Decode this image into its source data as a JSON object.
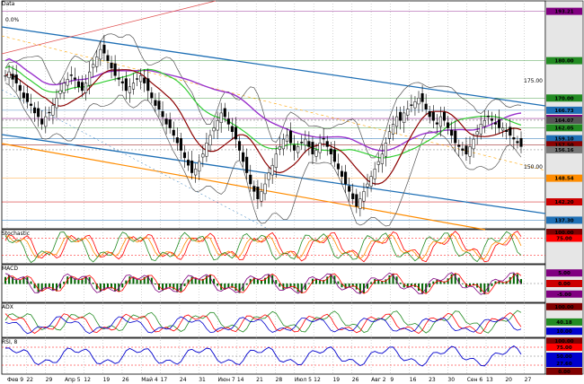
{
  "chart_data": {
    "type": "candlestick",
    "x_ticks": [
      "Фев 9",
      "22",
      "29",
      "Апр 5",
      "12",
      "19",
      "26",
      "Май 4",
      "17",
      "24",
      "31",
      "Июн 7",
      "14",
      "21",
      "28",
      "Июл 5",
      "12",
      "19",
      "26",
      "Авг 2",
      "9",
      "16",
      "23",
      "30",
      "Сен 6",
      "13",
      "20",
      "27"
    ],
    "panels": {
      "main": {
        "title": "Data",
        "annotation": "0.0%",
        "ylim": [
          135,
          196
        ],
        "y_ticks": [
          175.0,
          150.0
        ],
        "price_labels": [
          {
            "value": 193.21,
            "color": "#800080"
          },
          {
            "value": 180.0,
            "color": "#228B22"
          },
          {
            "value": 170.0,
            "color": "#228B22"
          },
          {
            "value": 166.73,
            "color": "#1e6fb5"
          },
          {
            "value": 164.53,
            "color": "#800080"
          },
          {
            "value": 164.07,
            "color": "#555555"
          },
          {
            "value": 162.05,
            "color": "#228B22"
          },
          {
            "value": 159.1,
            "color": "#1e6fb5"
          },
          {
            "value": 157.5,
            "color": "#8B0000"
          },
          {
            "value": 156.16,
            "color": "#777777"
          },
          {
            "value": 148.54,
            "color": "#FF8C00"
          },
          {
            "value": 142.2,
            "color": "#CC0000"
          },
          {
            "value": 137.3,
            "color": "#1e6fb5"
          }
        ],
        "closes": [
          176,
          177,
          175,
          174,
          172,
          170,
          169,
          168,
          166,
          165,
          163,
          165,
          166,
          168,
          170,
          172,
          174,
          175,
          176,
          175,
          173,
          172,
          174,
          177,
          179,
          181,
          183,
          182,
          180,
          178,
          176,
          175,
          174,
          172,
          173,
          174,
          175,
          176,
          174,
          172,
          170,
          168,
          167,
          165,
          163,
          162,
          160,
          158,
          156,
          154,
          152,
          150,
          151,
          153,
          155,
          158,
          160,
          162,
          164,
          166,
          165,
          163,
          161,
          159,
          156,
          153,
          150,
          147,
          145,
          143,
          145,
          147,
          150,
          152,
          155,
          157,
          159,
          160,
          158,
          156,
          157,
          158,
          159,
          157,
          155,
          156,
          158,
          159,
          157,
          155,
          153,
          151,
          149,
          147,
          145,
          143,
          141,
          143,
          145,
          147,
          149,
          151,
          153,
          155,
          158,
          161,
          163,
          165,
          164,
          166,
          167,
          168,
          169,
          170,
          169,
          167,
          165,
          164,
          163,
          165,
          164,
          162,
          160,
          158,
          157,
          156,
          155,
          157,
          159,
          161,
          163,
          164,
          165,
          164,
          163,
          162,
          162,
          161,
          160,
          159,
          158,
          157
        ]
      },
      "stochastic": {
        "title": "Stochastic",
        "ylim": [
          0,
          100
        ],
        "labels": [
          100.0,
          75.0
        ]
      },
      "macd": {
        "title": "MACD",
        "labels": [
          5.0,
          0.0,
          -5.0
        ]
      },
      "adx": {
        "title": "ADX",
        "labels": [
          100.0,
          40.18,
          10.0
        ]
      },
      "rsi": {
        "title": "RSI, 8",
        "ylim": [
          0,
          100
        ],
        "labels": [
          100.0,
          75.0,
          50.0,
          27.6,
          0.0
        ]
      }
    },
    "grid": true
  }
}
